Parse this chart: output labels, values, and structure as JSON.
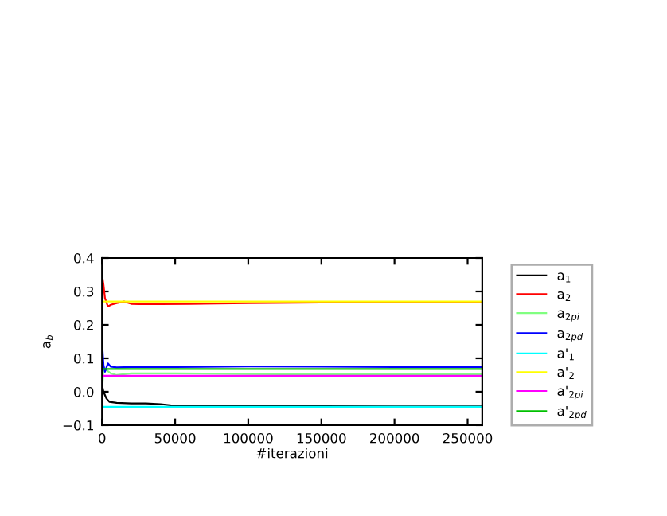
{
  "chart_data": {
    "type": "line",
    "xlabel": "#iterazioni",
    "ylabel": "a$_{b}$",
    "xlim": [
      0,
      260000
    ],
    "ylim": [
      -0.1,
      0.4
    ],
    "xticks": [
      0,
      50000,
      100000,
      150000,
      200000,
      250000
    ],
    "yticks": [
      {
        "value": -0.1,
        "label": "−0.1"
      },
      {
        "value": 0.0,
        "label": "0.0"
      },
      {
        "value": 0.1,
        "label": "0.1"
      },
      {
        "value": 0.2,
        "label": "0.2"
      },
      {
        "value": 0.3,
        "label": "0.3"
      },
      {
        "value": 0.4,
        "label": "0.4"
      }
    ],
    "legend": "right",
    "grid": false,
    "marker": "none",
    "line_style": "solid",
    "series": [
      {
        "name": "a$_{1}$",
        "color": "#000000",
        "x": [
          0,
          1000,
          3000,
          5000,
          10000,
          20000,
          30000,
          40000,
          50000,
          75000,
          100000,
          150000,
          200000,
          260000
        ],
        "values": [
          0.02,
          0.0,
          -0.02,
          -0.03,
          -0.033,
          -0.035,
          -0.035,
          -0.037,
          -0.042,
          -0.041,
          -0.042,
          -0.043,
          -0.044,
          -0.044
        ]
      },
      {
        "name": "a$_{2}$",
        "color": "#ff0000",
        "x": [
          0,
          1000,
          2000,
          4000,
          6000,
          10000,
          15000,
          20000,
          25000,
          40000,
          60000,
          100000,
          150000,
          200000,
          260000
        ],
        "values": [
          0.35,
          0.32,
          0.28,
          0.255,
          0.26,
          0.265,
          0.27,
          0.263,
          0.262,
          0.262,
          0.263,
          0.265,
          0.267,
          0.267,
          0.267
        ]
      },
      {
        "name": "a$_{2pi}$",
        "color": "#80ff80",
        "x": [
          0,
          1000,
          3000,
          6000,
          10000,
          20000,
          50000,
          100000,
          150000,
          200000,
          260000
        ],
        "values": [
          0.0,
          0.07,
          0.065,
          0.055,
          0.05,
          0.055,
          0.055,
          0.053,
          0.052,
          0.052,
          0.052
        ]
      },
      {
        "name": "a$_{2pd}$",
        "color": "#0000ff",
        "x": [
          0,
          1000,
          2000,
          4000,
          6000,
          10000,
          20000,
          50000,
          100000,
          150000,
          200000,
          260000
        ],
        "values": [
          0.15,
          0.08,
          0.06,
          0.085,
          0.075,
          0.073,
          0.074,
          0.074,
          0.076,
          0.075,
          0.074,
          0.074
        ]
      },
      {
        "name": "a'$_{1}$",
        "color": "#00ffff",
        "x": [
          0,
          260000
        ],
        "values": [
          -0.045,
          -0.045
        ]
      },
      {
        "name": "a'$_{2}$",
        "color": "#ffff00",
        "x": [
          0,
          260000
        ],
        "values": [
          0.27,
          0.27
        ]
      },
      {
        "name": "a'$_{2pi}$",
        "color": "#ff00ff",
        "x": [
          0,
          260000
        ],
        "values": [
          0.048,
          0.048
        ]
      },
      {
        "name": "a'$_{2pd}$",
        "color": "#00c000",
        "x": [
          0,
          260000
        ],
        "values": [
          0.068,
          0.068
        ]
      }
    ]
  }
}
